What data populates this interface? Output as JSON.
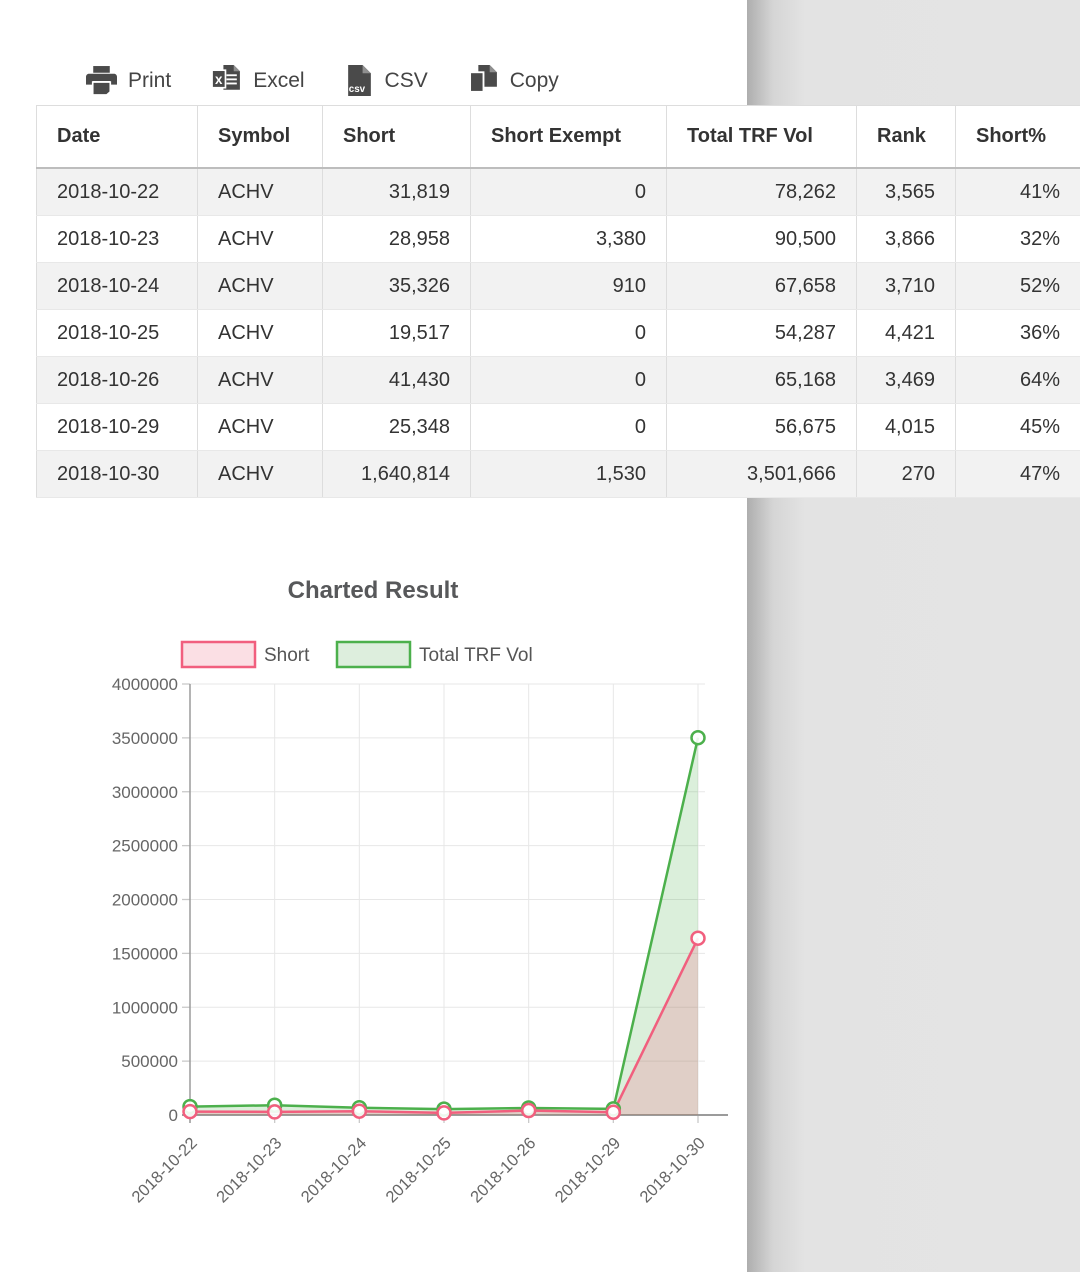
{
  "toolbar": {
    "buttons": [
      {
        "id": "print",
        "label": "Print"
      },
      {
        "id": "excel",
        "label": "Excel"
      },
      {
        "id": "csv",
        "label": "CSV"
      },
      {
        "id": "copy",
        "label": "Copy"
      }
    ]
  },
  "table": {
    "columns": [
      "Date",
      "Symbol",
      "Short",
      "Short Exempt",
      "Total TRF Vol",
      "Rank",
      "Short%"
    ],
    "align": [
      "left",
      "left",
      "right",
      "right",
      "right",
      "right",
      "right"
    ],
    "rows": [
      [
        "2018-10-22",
        "ACHV",
        "31,819",
        "0",
        "78,262",
        "3,565",
        "41%"
      ],
      [
        "2018-10-23",
        "ACHV",
        "28,958",
        "3,380",
        "90,500",
        "3,866",
        "32%"
      ],
      [
        "2018-10-24",
        "ACHV",
        "35,326",
        "910",
        "67,658",
        "3,710",
        "52%"
      ],
      [
        "2018-10-25",
        "ACHV",
        "19,517",
        "0",
        "54,287",
        "4,421",
        "36%"
      ],
      [
        "2018-10-26",
        "ACHV",
        "41,430",
        "0",
        "65,168",
        "3,469",
        "64%"
      ],
      [
        "2018-10-29",
        "ACHV",
        "25,348",
        "0",
        "56,675",
        "4,015",
        "45%"
      ],
      [
        "2018-10-30",
        "ACHV",
        "1,640,814",
        "1,530",
        "3,501,666",
        "270",
        "47%"
      ]
    ]
  },
  "chart_data": {
    "type": "area",
    "title": "Charted Result",
    "categories": [
      "2018-10-22",
      "2018-10-23",
      "2018-10-24",
      "2018-10-25",
      "2018-10-26",
      "2018-10-29",
      "2018-10-30"
    ],
    "series": [
      {
        "name": "Short",
        "color": "#f15f7e",
        "fill": "rgba(241,95,126,0.22)",
        "legend_fill": "#fbdfe4",
        "values": [
          31819,
          28958,
          35326,
          19517,
          41430,
          25348,
          1640814
        ]
      },
      {
        "name": "Total TRF Vol",
        "color": "#4cb04c",
        "fill": "rgba(76,176,76,0.20)",
        "legend_fill": "#ddeedd",
        "values": [
          78262,
          90500,
          67658,
          54287,
          65168,
          56675,
          3501666
        ]
      }
    ],
    "ylim": [
      0,
      4000000
    ],
    "ytick_step": 500000,
    "xlabel_rotation": -45,
    "grid": true,
    "legend_position": "top",
    "marker": "open-circle"
  }
}
